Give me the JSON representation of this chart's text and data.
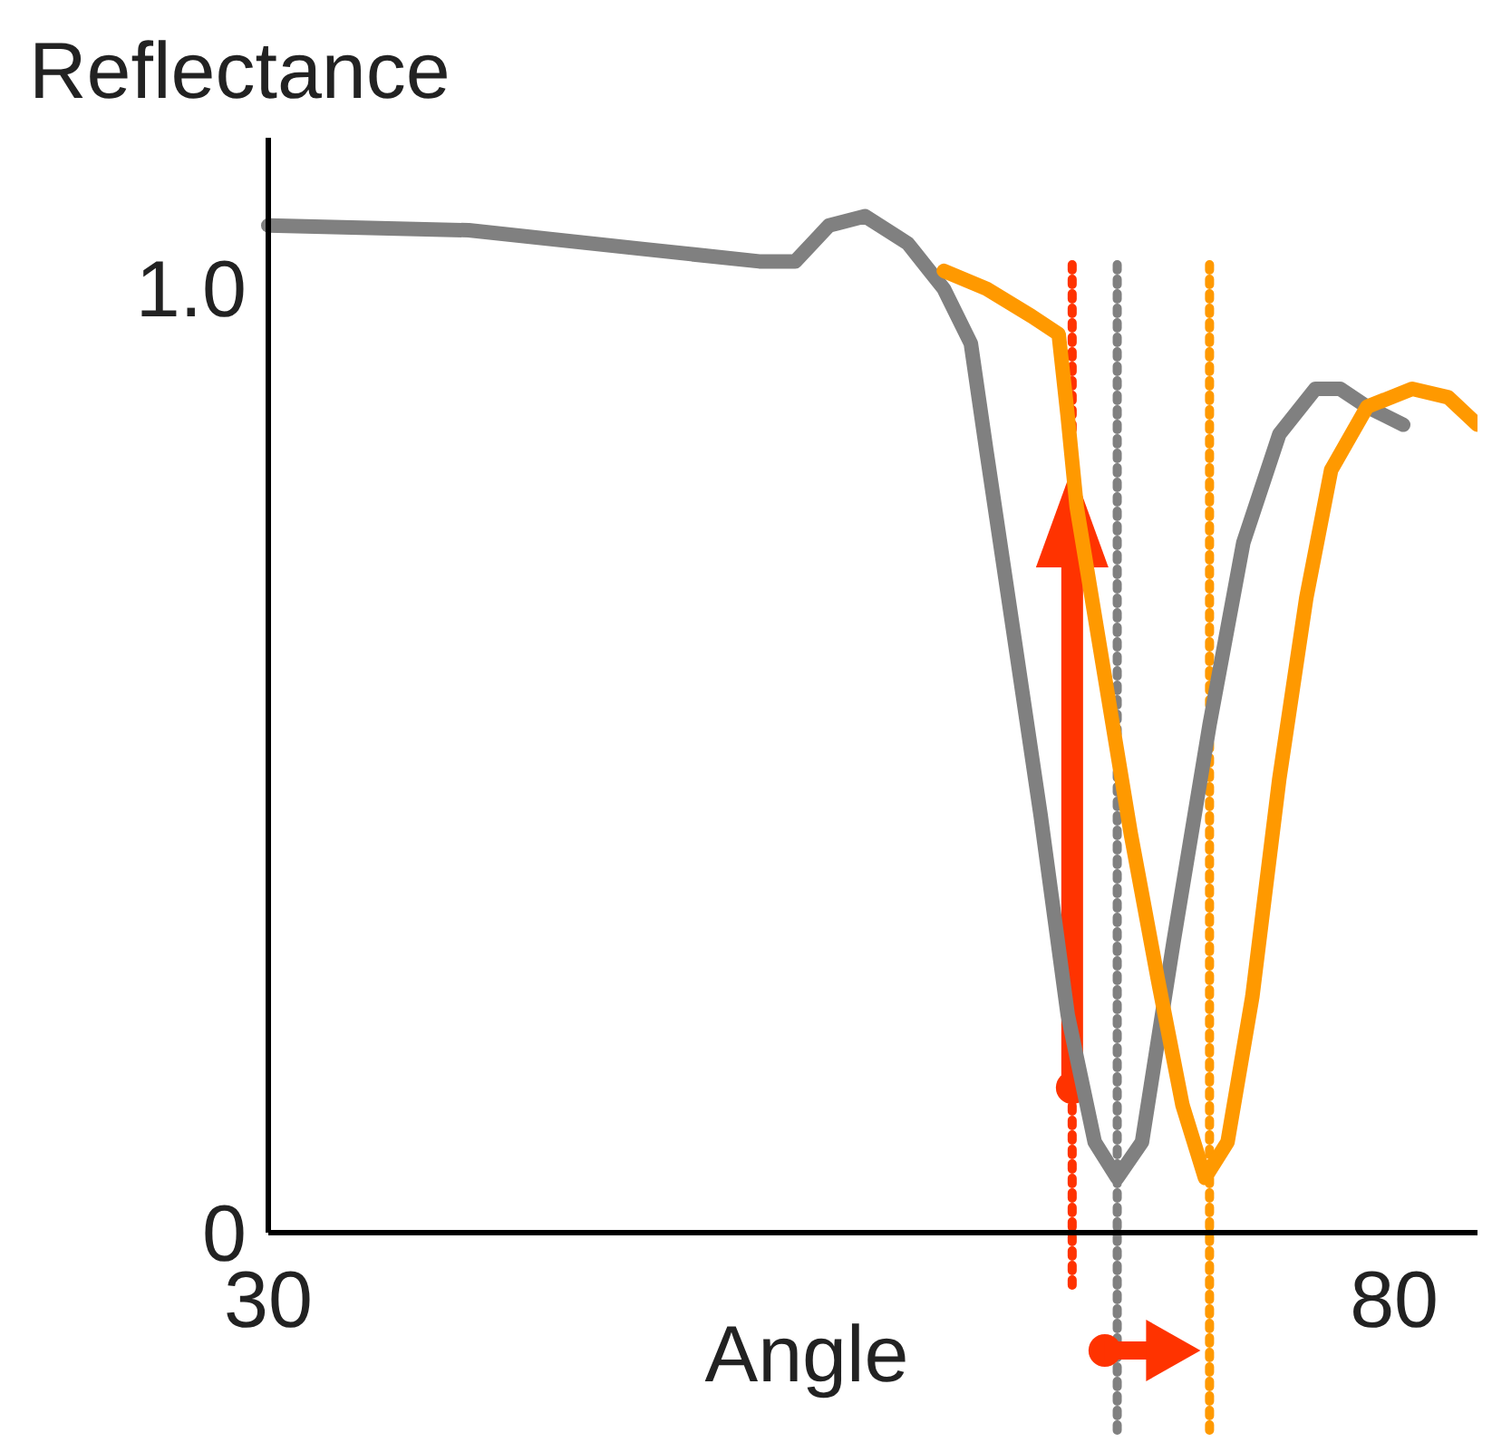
{
  "chart_data": {
    "type": "line",
    "xlabel": "Angle",
    "ylabel": "Reflectance",
    "xlim": [
      30,
      83.7
    ],
    "ylim": [
      0,
      1.16
    ],
    "xticks": [
      30,
      80
    ],
    "yticks": [
      0,
      {
        "value": 1,
        "label": "1.0"
      }
    ],
    "grid": false,
    "marker": "none",
    "line_style": "solid",
    "series": [
      {
        "color": "#808080",
        "x": [
          30,
          38.9,
          46.7,
          51.8,
          53.4,
          54.9,
          56.5,
          58.4,
          60.0,
          61.2,
          61.9,
          63.1,
          64.3,
          65.5,
          66.7,
          67.7,
          68.8,
          70.2,
          71.8,
          73.3,
          74.9,
          76.5,
          77.6,
          78.8,
          80.4
        ],
        "values": [
          1.067,
          1.062,
          1.042,
          1.029,
          1.029,
          1.067,
          1.077,
          1.048,
          1.0,
          0.942,
          0.827,
          0.635,
          0.442,
          0.231,
          0.096,
          0.058,
          0.096,
          0.308,
          0.538,
          0.731,
          0.846,
          0.894,
          0.894,
          0.875,
          0.856
        ]
      },
      {
        "color": "#ff9900",
        "x": [
          60,
          61.9,
          63.9,
          65.1,
          65.5,
          65.9,
          67.1,
          68.3,
          69.5,
          70.6,
          71.6,
          72.6,
          73.7,
          74.9,
          76.1,
          77.2,
          78.8,
          80.8,
          82.4,
          83.7
        ],
        "values": [
          1.019,
          1.0,
          0.971,
          0.952,
          0.865,
          0.769,
          0.596,
          0.423,
          0.269,
          0.135,
          0.058,
          0.096,
          0.25,
          0.481,
          0.673,
          0.808,
          0.875,
          0.894,
          0.885,
          0.856
        ]
      }
    ],
    "ref_lines": [
      {
        "axis": "x",
        "value": 65.7,
        "color": "#ff3300",
        "line_style": "dotted"
      },
      {
        "axis": "x",
        "value": 67.7,
        "color": "#808080",
        "line_style": "dotted"
      },
      {
        "axis": "x",
        "value": 71.8,
        "color": "#ff9900",
        "line_style": "dotted"
      }
    ]
  }
}
